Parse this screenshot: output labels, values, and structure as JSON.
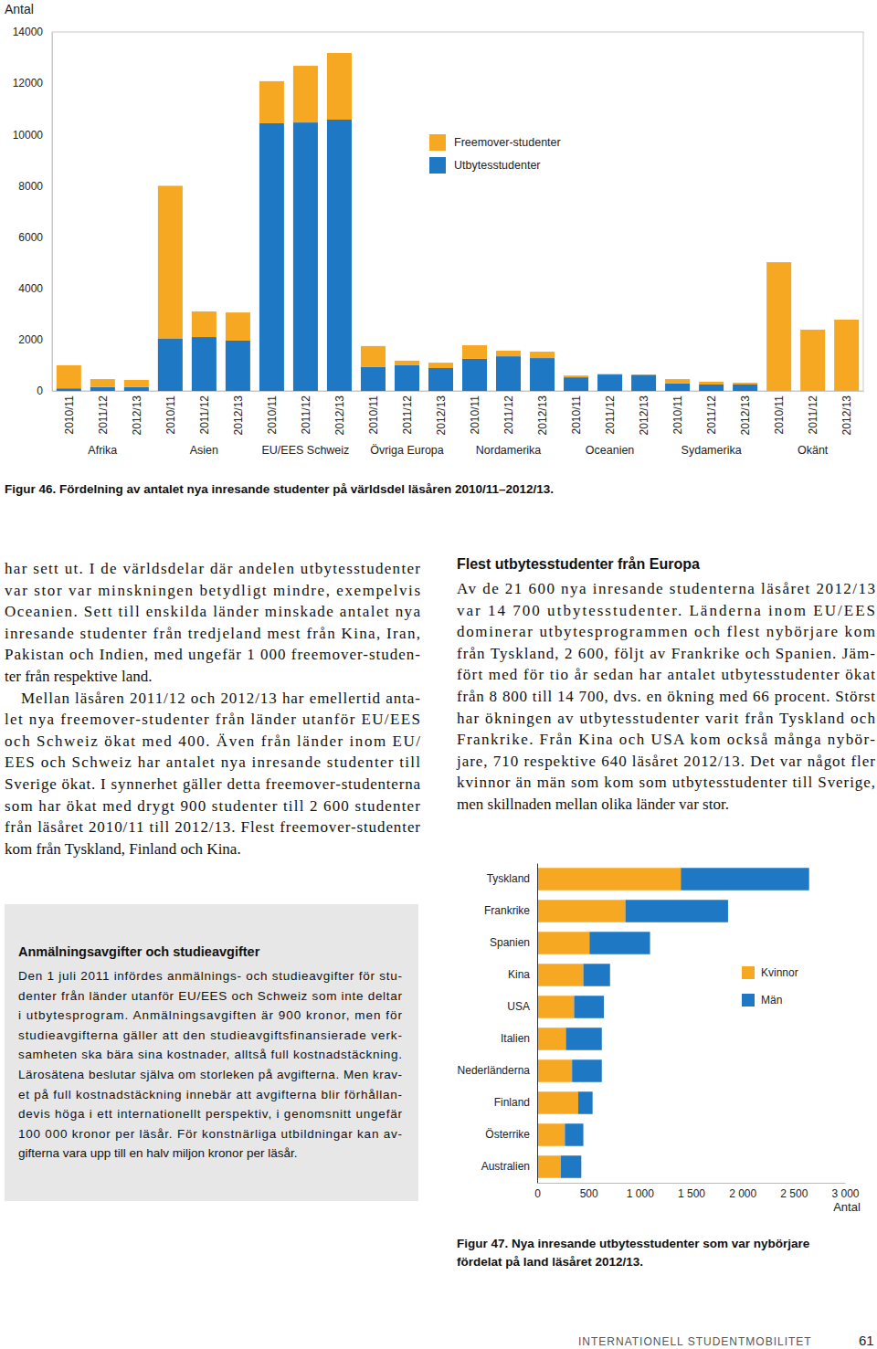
{
  "chart_data": [
    {
      "type": "bar",
      "stacked": true,
      "title": "Figur 46. Fördelning av antalet nya inresande studenter på världsdel läsåren 2010/11–2012/13.",
      "y_label": "Antal",
      "categories": [
        "2010/11",
        "2011/12",
        "2012/13",
        "2010/11",
        "2011/12",
        "2012/13",
        "2010/11",
        "2011/12",
        "2012/13",
        "2010/11",
        "2011/12",
        "2012/13",
        "2010/11",
        "2011/12",
        "2012/13",
        "2010/11",
        "2011/12",
        "2012/13",
        "2010/11",
        "2011/12",
        "2012/13",
        "2010/11",
        "2011/12",
        "2012/13"
      ],
      "groups": [
        "Afrika",
        "Asien",
        "EU/EES Schweiz",
        "Övriga Europa",
        "Nordamerika",
        "Oceanien",
        "Sydamerika",
        "Okänt"
      ],
      "series": [
        {
          "name": "Utbytesstudenter",
          "color": "#1f78c4",
          "values": [
            100,
            150,
            150,
            2050,
            2100,
            1960,
            10440,
            10470,
            10580,
            930,
            1000,
            890,
            1250,
            1350,
            1280,
            530,
            640,
            630,
            290,
            250,
            250,
            0,
            0,
            0
          ]
        },
        {
          "name": "Freemover-studenter",
          "color": "#f7a823",
          "values": [
            900,
            310,
            280,
            5950,
            1000,
            1100,
            1640,
            2210,
            2600,
            820,
            180,
            210,
            530,
            220,
            250,
            70,
            20,
            10,
            170,
            110,
            70,
            5020,
            2390,
            2780
          ]
        }
      ],
      "ylim": [
        0,
        14000
      ],
      "yticks": [
        0,
        2000,
        4000,
        6000,
        8000,
        10000,
        12000,
        14000
      ],
      "legend": "top"
    },
    {
      "type": "bar",
      "stacked": true,
      "orientation": "horizontal",
      "title": [
        "Figur 47. Nya inresande utbytesstudenter som var nybörjare",
        "fördelat på land läsåret 2012/13."
      ],
      "x_label": "Antal",
      "categories": [
        "Tyskland",
        "Frankrike",
        "Spanien",
        "Kina",
        "USA",
        "Italien",
        "Nederländerna",
        "Finland",
        "Österrike",
        "Australien"
      ],
      "series": [
        {
          "name": "Kvinnor",
          "color": "#f7a823",
          "values": [
            1400,
            860,
            510,
            450,
            360,
            280,
            340,
            400,
            270,
            230
          ]
        },
        {
          "name": "Män",
          "color": "#1f78c4",
          "values": [
            1250,
            1000,
            590,
            260,
            290,
            350,
            290,
            140,
            180,
            200
          ]
        }
      ],
      "xlim": [
        0,
        3000
      ],
      "xticks": [
        0,
        500,
        {
          "value": 1000,
          "label": "1 000"
        },
        {
          "value": 1500,
          "label": "1 500"
        },
        {
          "value": 2000,
          "label": "2 000"
        },
        {
          "value": 2500,
          "label": "2 500"
        },
        {
          "value": 3000,
          "label": "3 000"
        }
      ],
      "legend": "right"
    }
  ],
  "document": {
    "left_column": {
      "paragraphs": [
        [
          "har sett ut. I de världsdelar där andelen utbytesstudenter",
          "var stor var minskningen betydligt mindre, exempelvis",
          "Oceanien. Sett till enskilda länder minskade antalet nya",
          "inresande studenter från tredjeland mest från Kina, Iran,",
          "Pakistan och Indien, med ungefär 1 000 freemover-studen-",
          "ter från respektive land."
        ],
        [
          "Mellan läsåren 2011/12 och 2012/13 har emellertid anta-",
          "let nya freemover-studenter från länder utanför EU/EES",
          "och Schweiz ökat med 400. Även från länder inom EU/",
          "EES och Schweiz har antalet nya inresande studenter till",
          "Sverige ökat. I synnerhet gäller detta freemover-studenterna",
          "som har ökat med drygt 900 studenter till 2 600 studenter",
          "från läsåret 2010/11 till 2012/13. Flest freemover-studenter",
          "kom från Tyskland, Finland och Kina."
        ]
      ]
    },
    "right_column": {
      "heading": "Flest utbytesstudenter från Europa",
      "paragraphs": [
        [
          "Av de 21 600 nya inresande studenterna läsåret 2012/13",
          "var 14 700 utbytesstudenter. Länderna inom EU/EES",
          "dominerar utbytesprogrammen och flest nybörjare kom",
          "från Tyskland, 2 600, följt av Frankrike och Spanien. Jäm-",
          "fört med för tio år sedan har antalet utbytesstudenter ökat",
          "från 8 800 till 14 700, dvs. en ökning med 66 procent. Störst",
          "har ökningen av utbytesstudenter varit från Tyskland och",
          "Frankrike. Från Kina och USA kom också många nybör-",
          "jare, 710 respektive 640 läsåret 2012/13. Det var något fler",
          "kvinnor än män som kom som utbytesstudenter till Sverige,",
          "men skillnaden mellan olika länder var stor."
        ]
      ]
    },
    "box": {
      "title": "Anmälningsavgifter och studieavgifter",
      "paragraphs": [
        [
          "Den 1 juli 2011 infördes anmälnings- och studieavgifter för stu-",
          "denter från länder utanför EU/EES och Schweiz som inte deltar",
          "i utbytesprogram. Anmälningsavgiften är 900 kronor, men för",
          "studieavgifterna gäller att den studieavgiftsfinansierade verk-",
          "samheten ska bära sina kostnader, alltså full kostnadstäckning.",
          "Lärosätena beslutar själva om storleken på avgifterna. Men krav-",
          "et på full kostnadstäckning innebär att avgifterna blir förhållan-",
          "devis höga i ett internationellt perspektiv, i genomsnitt ungefär",
          "100 000 kronor per läsår. För konstnärliga utbildningar kan av-",
          "gifterna vara upp till en halv miljon kronor per läsår."
        ]
      ]
    },
    "footer": {
      "section": "INTERNATIONELL STUDENTMOBILITET",
      "page": 61
    }
  }
}
